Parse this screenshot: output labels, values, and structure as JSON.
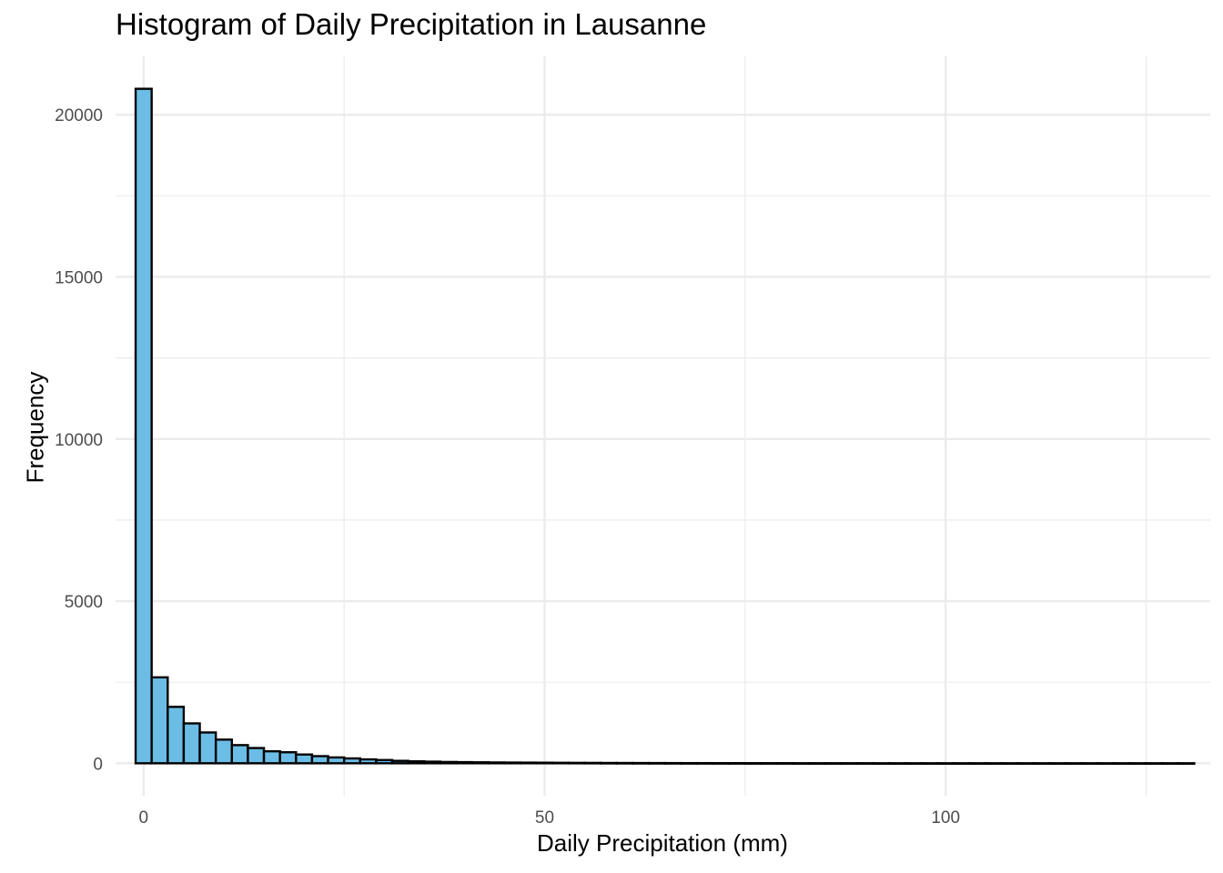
{
  "chart_data": {
    "type": "bar",
    "title": "Histogram of Daily Precipitation in Lausanne",
    "xlabel": "Daily Precipitation (mm)",
    "ylabel": "Frequency",
    "xlim": [
      -3.5,
      133
    ],
    "ylim": [
      -1000,
      21800
    ],
    "x_ticks": [
      0,
      50,
      100
    ],
    "x_minor_ticks": [
      25,
      75,
      125
    ],
    "y_ticks": [
      0,
      5000,
      10000,
      15000,
      20000
    ],
    "y_minor_ticks": [
      2500,
      7500,
      12500,
      17500
    ],
    "bin_width": 2,
    "bin_start": -1,
    "values": [
      20800,
      2650,
      1740,
      1230,
      950,
      730,
      560,
      470,
      370,
      340,
      270,
      220,
      180,
      150,
      120,
      100,
      75,
      60,
      50,
      40,
      35,
      30,
      25,
      22,
      20,
      18,
      15,
      13,
      12,
      10,
      9,
      8,
      7,
      6,
      5,
      5,
      4,
      4,
      3,
      3,
      3,
      2,
      2,
      2,
      2,
      2,
      1,
      1,
      1,
      1,
      1,
      1,
      1,
      1,
      1,
      1,
      1,
      1,
      1,
      1,
      1,
      1,
      1,
      1,
      1,
      1
    ],
    "bar_fill": "#6bbde6",
    "bar_stroke": "#000000",
    "grid": true,
    "grid_color": "#ebebeb",
    "legend": "none"
  }
}
